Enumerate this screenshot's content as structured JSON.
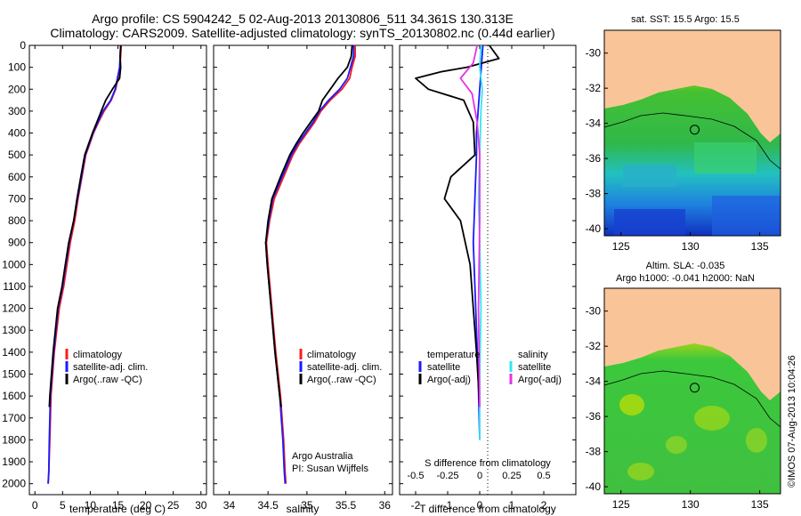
{
  "header": {
    "line1": "Argo profile: CS 5904242_5 02-Aug-2013 20130806_511 34.361S 130.313E",
    "line2": "Climatology: CARS2009. Satellite-adjusted climatology: synTS_20130802.nc (0.44d earlier)"
  },
  "colors": {
    "climatology": "#ff1a1a",
    "satellite": "#1a1aff",
    "argo": "#000000",
    "sal_satellite": "#33e6f0",
    "sal_argo": "#e633e6",
    "land": "#f9c598"
  },
  "chart_data": [
    {
      "type": "line",
      "name": "temperature-profile",
      "xlabel": "temperature (deg C)",
      "ylabel": "",
      "xlim": [
        -1,
        31
      ],
      "ylim": [
        0,
        2050
      ],
      "y_inverted": true,
      "x_ticks": [
        "0",
        "5",
        "10",
        "15",
        "20",
        "25",
        "30"
      ],
      "y_ticks": [
        "0",
        "100",
        "200",
        "300",
        "400",
        "500",
        "600",
        "700",
        "800",
        "900",
        "1000",
        "1100",
        "1200",
        "1300",
        "1400",
        "1500",
        "1600",
        "1700",
        "1800",
        "1900",
        "2000"
      ],
      "legend": [
        "climatology",
        "satellite-adj. clim.",
        "Argo(..raw -QC)"
      ],
      "series": [
        {
          "name": "climatology",
          "x": [
            15.6,
            15.5,
            15.3,
            15.0,
            14.6,
            13.8,
            12.5,
            11.5,
            10.6,
            9.9,
            9.2,
            8.5,
            7.8,
            7.2,
            6.4,
            5.8,
            5.2,
            4.4,
            3.5,
            2.9,
            2.7,
            2.5,
            2.4
          ],
          "y": [
            0,
            50,
            100,
            150,
            200,
            250,
            300,
            350,
            400,
            450,
            500,
            600,
            700,
            800,
            900,
            1000,
            1100,
            1200,
            1400,
            1600,
            1800,
            1950,
            2000
          ]
        },
        {
          "name": "satellite-adj. clim.",
          "x": [
            15.5,
            15.4,
            15.3,
            14.9,
            14.5,
            13.7,
            12.3,
            11.4,
            10.5,
            9.8,
            9.1,
            8.4,
            7.7,
            7.0,
            6.2,
            5.6,
            5.0,
            4.2,
            3.4,
            2.8,
            2.6,
            2.5,
            2.4
          ],
          "y": [
            0,
            50,
            100,
            150,
            200,
            250,
            300,
            350,
            400,
            450,
            500,
            600,
            700,
            800,
            900,
            1000,
            1100,
            1200,
            1400,
            1600,
            1800,
            1950,
            2000
          ]
        },
        {
          "name": "Argo(..raw -QC)",
          "x": [
            15.5,
            15.4,
            15.5,
            15.3,
            14.0,
            12.8,
            12.0,
            11.2,
            10.4,
            9.7,
            9.0,
            8.3,
            7.6,
            7.0,
            6.1,
            5.5,
            4.9,
            4.1,
            3.3,
            2.7,
            2.6
          ],
          "y": [
            0,
            50,
            100,
            150,
            200,
            250,
            300,
            350,
            400,
            450,
            500,
            600,
            700,
            800,
            900,
            1000,
            1100,
            1200,
            1400,
            1600,
            1650
          ]
        }
      ]
    },
    {
      "type": "line",
      "name": "salinity-profile",
      "xlabel": "salinity",
      "xlim": [
        33.8,
        36.1
      ],
      "ylim": [
        0,
        2050
      ],
      "y_inverted": true,
      "x_ticks": [
        "34",
        "34.5",
        "35",
        "35.5",
        "36"
      ],
      "legend": [
        "climatology",
        "satellite-adj. clim.",
        "Argo(..raw -QC)"
      ],
      "annotation": [
        "Argo Australia",
        "PI: Susan Wijffels"
      ],
      "series": [
        {
          "name": "climatology",
          "x": [
            35.62,
            35.62,
            35.58,
            35.55,
            35.45,
            35.3,
            35.18,
            35.1,
            35.0,
            34.9,
            34.82,
            34.7,
            34.58,
            34.52,
            34.48,
            34.5,
            34.55,
            34.6,
            34.66,
            34.7,
            34.72,
            34.73
          ],
          "y": [
            0,
            50,
            100,
            150,
            200,
            250,
            300,
            350,
            400,
            450,
            500,
            600,
            700,
            800,
            900,
            1000,
            1200,
            1400,
            1600,
            1800,
            1950,
            2000
          ]
        },
        {
          "name": "satellite-adj. clim.",
          "x": [
            35.6,
            35.6,
            35.56,
            35.52,
            35.42,
            35.28,
            35.16,
            35.08,
            34.98,
            34.88,
            34.8,
            34.68,
            34.56,
            34.51,
            34.47,
            34.49,
            34.54,
            34.59,
            34.65,
            34.69,
            34.71,
            34.72
          ],
          "y": [
            0,
            50,
            100,
            150,
            200,
            250,
            300,
            350,
            400,
            450,
            500,
            600,
            700,
            800,
            900,
            1000,
            1200,
            1400,
            1600,
            1800,
            1950,
            2000
          ]
        },
        {
          "name": "Argo(..raw -QC)",
          "x": [
            35.58,
            35.57,
            35.52,
            35.4,
            35.3,
            35.2,
            35.15,
            35.05,
            34.95,
            34.86,
            34.78,
            34.66,
            34.55,
            34.5,
            34.47,
            34.49,
            34.54,
            34.59,
            34.65,
            34.67
          ],
          "y": [
            0,
            50,
            100,
            150,
            200,
            250,
            300,
            350,
            400,
            450,
            500,
            600,
            700,
            800,
            900,
            1000,
            1200,
            1400,
            1600,
            1650
          ]
        }
      ]
    },
    {
      "type": "line",
      "name": "difference-from-climatology",
      "xlabel": "T difference from climatology",
      "x2label": "S difference from climatology",
      "xlim": [
        -2.5,
        3
      ],
      "x2lim": [
        -0.625,
        0.75
      ],
      "ylim": [
        0,
        2050
      ],
      "y_inverted": true,
      "x_ticks": [
        "-2",
        "-1",
        "0",
        "1",
        "2"
      ],
      "x2_ticks": [
        "-0.5",
        "-0.25",
        "0",
        "0.25",
        "0.5"
      ],
      "legend_titles": [
        "temperature",
        "salinity"
      ],
      "legend": [
        "satellite",
        "Argo(-adj)",
        "satellite",
        "Argo(-adj)"
      ],
      "series": [
        {
          "name": "temperature satellite",
          "x": [
            0.1,
            0.05,
            0,
            -0.05,
            -0.1,
            -0.1,
            -0.15,
            -0.2,
            -0.15,
            -0.1,
            -0.05,
            0
          ],
          "y": [
            0,
            100,
            200,
            300,
            400,
            500,
            700,
            900,
            1100,
            1300,
            1500,
            1800
          ]
        },
        {
          "name": "temperature Argo(-adj)",
          "x": [
            0.3,
            0.6,
            -0.4,
            -1.2,
            -2.0,
            -1.6,
            -0.5,
            -0.2,
            -0.15,
            -0.9,
            -1.1,
            -0.6,
            -0.3,
            -0.2,
            -0.1,
            0
          ],
          "y": [
            0,
            60,
            100,
            120,
            150,
            200,
            250,
            350,
            500,
            600,
            700,
            800,
            1000,
            1200,
            1400,
            1650
          ]
        },
        {
          "name": "salinity satellite",
          "x": [
            0.01,
            0.0,
            0.02,
            0.01,
            0.0,
            -0.01,
            0.0,
            0.01,
            0.0,
            0.0
          ],
          "y": [
            0,
            100,
            200,
            300,
            500,
            700,
            900,
            1200,
            1500,
            1800
          ]
        },
        {
          "name": "salinity Argo(-adj)",
          "x": [
            -0.02,
            -0.05,
            -0.15,
            -0.06,
            -0.02,
            0.0,
            0.0,
            -0.01,
            0.0
          ],
          "y": [
            0,
            80,
            150,
            220,
            350,
            500,
            800,
            1200,
            1650
          ]
        }
      ]
    },
    {
      "type": "heatmap",
      "name": "sst-map",
      "title": "sat. SST: 15.5  Argo: 15.5",
      "xlim": [
        123.8,
        136.5
      ],
      "ylim": [
        -40.4,
        -28.7
      ],
      "x_ticks": [
        "125",
        "130",
        "135"
      ],
      "y_ticks": [
        "-30",
        "-32",
        "-34",
        "-36",
        "-38",
        "-40"
      ],
      "marker": {
        "lon": 130.313,
        "lat": -34.361
      }
    },
    {
      "type": "heatmap",
      "name": "sla-map",
      "title": "Altim. SLA: -0.035",
      "subtitle": "Argo h1000: -0.041  h2000: NaN",
      "xlim": [
        123.8,
        136.5
      ],
      "ylim": [
        -40.4,
        -28.7
      ],
      "x_ticks": [
        "125",
        "130",
        "135"
      ],
      "y_ticks": [
        "-30",
        "-32",
        "-34",
        "-36",
        "-38",
        "-40"
      ],
      "marker": {
        "lon": 130.313,
        "lat": -34.361
      }
    }
  ],
  "credit": "©IMOS 07-Aug-2013 10:04:26"
}
